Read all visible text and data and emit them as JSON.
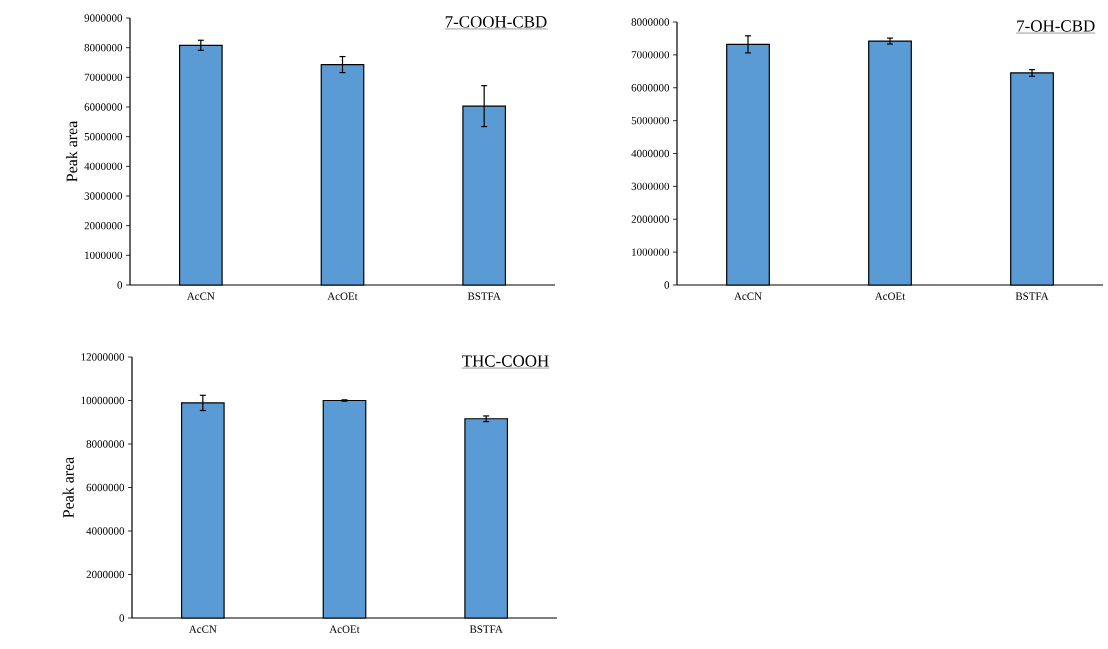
{
  "chart_data": [
    {
      "type": "bar",
      "title": "7-COOH-CBD",
      "ylabel": "Peak area",
      "categories": [
        "AcCN",
        "AcOEt",
        "BSTFA"
      ],
      "values": [
        8080000,
        7430000,
        6030000
      ],
      "errors": [
        170000,
        270000,
        690000
      ],
      "color": "#5b9bd5",
      "ylim": [
        0,
        9000000
      ],
      "yticks": [
        0,
        1000000,
        2000000,
        3000000,
        4000000,
        5000000,
        6000000,
        7000000,
        8000000,
        9000000
      ]
    },
    {
      "type": "bar",
      "title": "7-OH-CBD",
      "categories": [
        "AcCN",
        "AcOEt",
        "BSTFA"
      ],
      "values": [
        7320000,
        7420000,
        6450000
      ],
      "errors": [
        260000,
        90000,
        100000
      ],
      "color": "#5b9bd5",
      "ylim": [
        0,
        8000000
      ],
      "yticks": [
        0,
        1000000,
        2000000,
        3000000,
        4000000,
        5000000,
        6000000,
        7000000,
        8000000
      ]
    },
    {
      "type": "bar",
      "title": "THC-COOH",
      "ylabel": "Peak area",
      "categories": [
        "AcCN",
        "AcOEt",
        "BSTFA"
      ],
      "values": [
        9890000,
        10000000,
        9160000
      ],
      "errors": [
        350000,
        30000,
        130000
      ],
      "color": "#5b9bd5",
      "ylim": [
        0,
        12000000
      ],
      "yticks": [
        0,
        2000000,
        4000000,
        6000000,
        8000000,
        10000000,
        12000000
      ]
    }
  ]
}
